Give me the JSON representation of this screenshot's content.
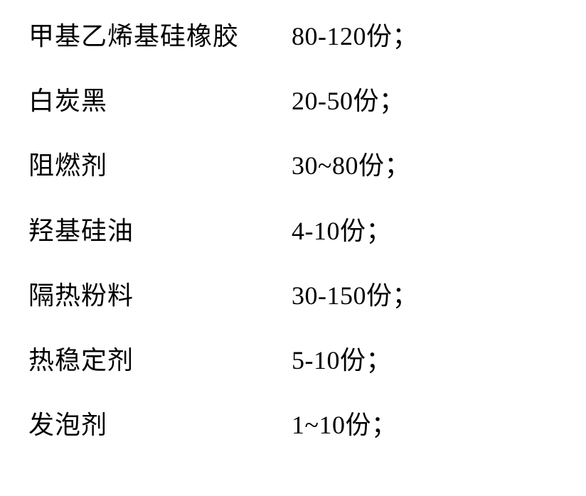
{
  "rows": [
    {
      "label": "甲基乙烯基硅橡胶",
      "range": "80-120",
      "unit": "份；"
    },
    {
      "label": "白炭黑",
      "range": "20-50",
      "unit": "份；"
    },
    {
      "label": "阻燃剂",
      "range": "30~80",
      "unit": "份；"
    },
    {
      "label": "羟基硅油",
      "range": "4-10",
      "unit": "份；"
    },
    {
      "label": "隔热粉料",
      "range": "30-150",
      "unit": "份；"
    },
    {
      "label": "热稳定剂",
      "range": "5-10",
      "unit": "份；"
    },
    {
      "label": "发泡剂",
      "range": "1~10",
      "unit": "份；"
    }
  ]
}
